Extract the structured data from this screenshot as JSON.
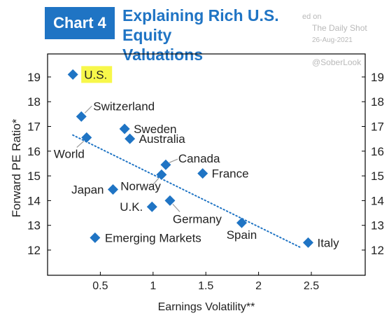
{
  "header": {
    "badge": "Chart 4",
    "title_line1": "Explaining Rich U.S. Equity",
    "title_line2": "Valuations"
  },
  "watermark": {
    "line1": "ed on",
    "line2": "The Daily Shot",
    "line3": "26-Aug-2021",
    "handle": "@SoberLook"
  },
  "colors": {
    "marker": "#1f74c4",
    "trend": "#1f74c4",
    "highlight": "#f7f74a",
    "title": "#1f74c4"
  },
  "chart_data": {
    "type": "scatter",
    "xlabel": "Earnings Volatility**",
    "ylabel": "Forward PE Ratio*",
    "xlim": [
      0,
      2.5
    ],
    "ylim": [
      11.0,
      19.8
    ],
    "x_ticks": [
      0.5,
      1,
      1.5,
      2,
      2.5
    ],
    "x_tick_labels": [
      "0.5",
      "1",
      "1.5",
      "2",
      "2.5"
    ],
    "y_ticks": [
      12,
      13,
      14,
      15,
      16,
      17,
      18,
      19
    ],
    "y_tick_labels": [
      "12",
      "13",
      "14",
      "15",
      "16",
      "17",
      "18",
      "19"
    ],
    "grid": false,
    "points": [
      {
        "label": "U.S.",
        "x": 0.24,
        "y": 19.1,
        "highlight": true
      },
      {
        "label": "Switzerland",
        "x": 0.32,
        "y": 17.4
      },
      {
        "label": "World",
        "x": 0.37,
        "y": 16.55
      },
      {
        "label": "Sweden",
        "x": 0.73,
        "y": 16.9
      },
      {
        "label": "Australia",
        "x": 0.78,
        "y": 16.5
      },
      {
        "label": "Canada",
        "x": 1.12,
        "y": 15.45
      },
      {
        "label": "Norway",
        "x": 1.08,
        "y": 15.05
      },
      {
        "label": "France",
        "x": 1.47,
        "y": 15.1
      },
      {
        "label": "Japan",
        "x": 0.62,
        "y": 14.45
      },
      {
        "label": "U.K.",
        "x": 0.99,
        "y": 13.75
      },
      {
        "label": "Germany",
        "x": 1.16,
        "y": 14.0
      },
      {
        "label": "Spain",
        "x": 1.84,
        "y": 13.1
      },
      {
        "label": "Emerging Markets",
        "x": 0.45,
        "y": 12.5
      },
      {
        "label": "Italy",
        "x": 2.47,
        "y": 12.3
      }
    ],
    "trendline": {
      "x": [
        0.24,
        2.4
      ],
      "y": [
        16.65,
        12.1
      ]
    }
  }
}
